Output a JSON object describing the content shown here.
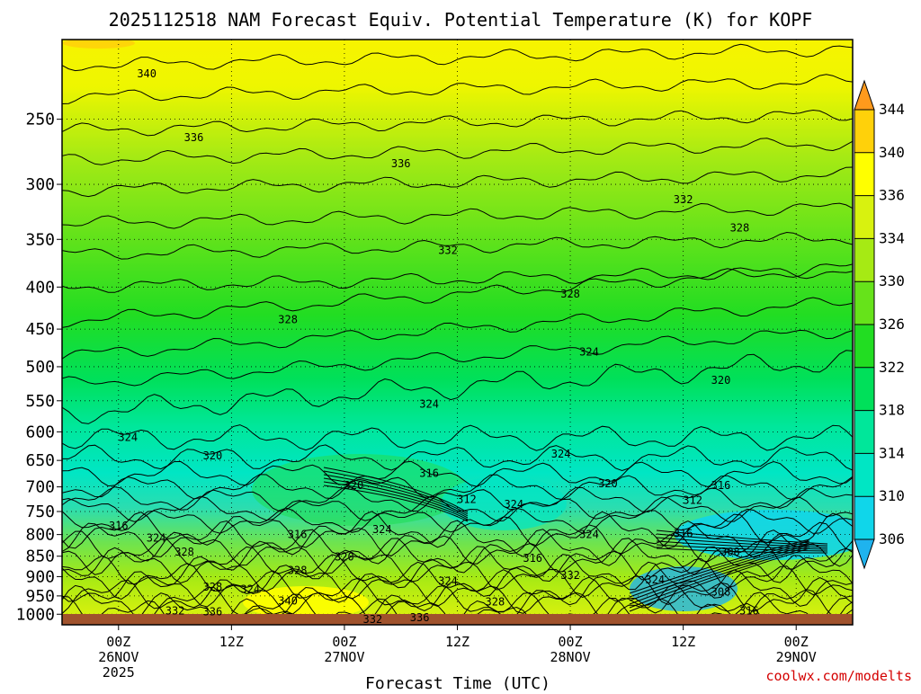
{
  "chart_data": {
    "type": "heatmap",
    "title": "2025112518 NAM Forecast Equiv. Potential Temperature (K) for KOPF",
    "xlabel": "Forecast Time (UTC)",
    "ylabel": "",
    "y_scale": "log",
    "y_ticks": [
      250,
      300,
      350,
      400,
      450,
      500,
      550,
      600,
      650,
      700,
      750,
      800,
      850,
      900,
      950,
      1000
    ],
    "ylim": [
      1030,
      200
    ],
    "x_ticks": [
      {
        "hour": 0,
        "lines": [
          "00Z",
          "26NOV",
          "2025"
        ]
      },
      {
        "hour": 12,
        "lines": [
          "12Z"
        ]
      },
      {
        "hour": 24,
        "lines": [
          "00Z",
          "27NOV"
        ]
      },
      {
        "hour": 36,
        "lines": [
          "12Z"
        ]
      },
      {
        "hour": 48,
        "lines": [
          "00Z",
          "28NOV"
        ]
      },
      {
        "hour": 60,
        "lines": [
          "12Z"
        ]
      },
      {
        "hour": 72,
        "lines": [
          "00Z",
          "29NOV"
        ]
      }
    ],
    "xlim": [
      -6,
      78
    ],
    "colorbar": {
      "levels": [
        306,
        310,
        314,
        318,
        322,
        326,
        330,
        334,
        336,
        340,
        344
      ],
      "colors": [
        "#1fb3ee",
        "#10d6ea",
        "#00e6c4",
        "#00e79a",
        "#00e05a",
        "#22dd22",
        "#66e31a",
        "#a6ea14",
        "#d8f20f",
        "#ffff00",
        "#ffd10a",
        "#ff9a1c"
      ]
    },
    "contour_labels": [
      {
        "value": "340",
        "hour": 3,
        "p": 220
      },
      {
        "value": "336",
        "hour": 8,
        "p": 263
      },
      {
        "value": "336",
        "hour": 30,
        "p": 283
      },
      {
        "value": "332",
        "hour": 60,
        "p": 313
      },
      {
        "value": "332",
        "hour": 35,
        "p": 361
      },
      {
        "value": "328",
        "hour": 66,
        "p": 339
      },
      {
        "value": "328",
        "hour": 48,
        "p": 408
      },
      {
        "value": "328",
        "hour": 18,
        "p": 438
      },
      {
        "value": "324",
        "hour": 50,
        "p": 480
      },
      {
        "value": "320",
        "hour": 64,
        "p": 519
      },
      {
        "value": "324",
        "hour": 33,
        "p": 555
      },
      {
        "value": "324",
        "hour": 1,
        "p": 609
      },
      {
        "value": "320",
        "hour": 10,
        "p": 642
      },
      {
        "value": "316",
        "hour": 33,
        "p": 674
      },
      {
        "value": "324",
        "hour": 47,
        "p": 638
      },
      {
        "value": "320",
        "hour": 25,
        "p": 697
      },
      {
        "value": "312",
        "hour": 37,
        "p": 725
      },
      {
        "value": "324",
        "hour": 42,
        "p": 735
      },
      {
        "value": "320",
        "hour": 52,
        "p": 694
      },
      {
        "value": "316",
        "hour": 64,
        "p": 697
      },
      {
        "value": "312",
        "hour": 61,
        "p": 727
      },
      {
        "value": "316",
        "hour": 0,
        "p": 781
      },
      {
        "value": "324",
        "hour": 4,
        "p": 808
      },
      {
        "value": "316",
        "hour": 19,
        "p": 800
      },
      {
        "value": "324",
        "hour": 28,
        "p": 789
      },
      {
        "value": "324",
        "hour": 50,
        "p": 800
      },
      {
        "value": "316",
        "hour": 60,
        "p": 798
      },
      {
        "value": "328",
        "hour": 7,
        "p": 840
      },
      {
        "value": "320",
        "hour": 24,
        "p": 852
      },
      {
        "value": "316",
        "hour": 44,
        "p": 855
      },
      {
        "value": "308",
        "hour": 65,
        "p": 840
      },
      {
        "value": "328",
        "hour": 19,
        "p": 885
      },
      {
        "value": "332",
        "hour": 48,
        "p": 897
      },
      {
        "value": "324",
        "hour": 35,
        "p": 912
      },
      {
        "value": "324",
        "hour": 57,
        "p": 908
      },
      {
        "value": "328",
        "hour": 10,
        "p": 927
      },
      {
        "value": "324",
        "hour": 14,
        "p": 932
      },
      {
        "value": "308",
        "hour": 64,
        "p": 940
      },
      {
        "value": "340",
        "hour": 18,
        "p": 963
      },
      {
        "value": "328",
        "hour": 40,
        "p": 966
      },
      {
        "value": "332",
        "hour": 6,
        "p": 990
      },
      {
        "value": "336",
        "hour": 10,
        "p": 993
      },
      {
        "value": "316",
        "hour": 67,
        "p": 990
      },
      {
        "value": "332",
        "hour": 27,
        "p": 1015
      },
      {
        "value": "336",
        "hour": 32,
        "p": 1010
      }
    ]
  },
  "credit": "coolwx.com/modelts"
}
